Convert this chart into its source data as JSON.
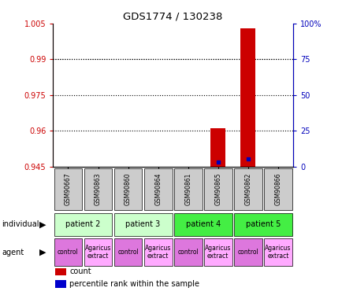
{
  "title": "GDS1774 / 130238",
  "samples": [
    "GSM90667",
    "GSM90863",
    "GSM90860",
    "GSM90864",
    "GSM90861",
    "GSM90865",
    "GSM90862",
    "GSM90866"
  ],
  "ylim_left": [
    0.945,
    1.005
  ],
  "yticks_left": [
    0.945,
    0.96,
    0.975,
    0.99,
    1.005
  ],
  "ytick_labels_left": [
    "0.945",
    "0.96",
    "0.975",
    "0.99",
    "1.005"
  ],
  "ylim_right": [
    0,
    100
  ],
  "yticks_right": [
    0,
    25,
    50,
    75,
    100
  ],
  "ytick_labels_right": [
    "0",
    "25",
    "50",
    "75",
    "100%"
  ],
  "red_bars": {
    "GSM90865": [
      0.945,
      0.961
    ],
    "GSM90862": [
      0.945,
      1.003
    ]
  },
  "blue_dots_pct": {
    "GSM90865": 3.0,
    "GSM90862": 5.5
  },
  "individual_row": [
    {
      "label": "patient 2",
      "start": 0,
      "end": 2,
      "color": "#ccffcc"
    },
    {
      "label": "patient 3",
      "start": 2,
      "end": 4,
      "color": "#ccffcc"
    },
    {
      "label": "patient 4",
      "start": 4,
      "end": 6,
      "color": "#44ee44"
    },
    {
      "label": "patient 5",
      "start": 6,
      "end": 8,
      "color": "#44ee44"
    }
  ],
  "agent_row": [
    {
      "label": "control",
      "start": 0,
      "end": 1,
      "color": "#dd77dd"
    },
    {
      "label": "Agaricus\nextract",
      "start": 1,
      "end": 2,
      "color": "#ffaaff"
    },
    {
      "label": "control",
      "start": 2,
      "end": 3,
      "color": "#dd77dd"
    },
    {
      "label": "Agaricus\nextract",
      "start": 3,
      "end": 4,
      "color": "#ffaaff"
    },
    {
      "label": "control",
      "start": 4,
      "end": 5,
      "color": "#dd77dd"
    },
    {
      "label": "Agaricus\nextract",
      "start": 5,
      "end": 6,
      "color": "#ffaaff"
    },
    {
      "label": "control",
      "start": 6,
      "end": 7,
      "color": "#dd77dd"
    },
    {
      "label": "Agaricus\nextract",
      "start": 7,
      "end": 8,
      "color": "#ffaaff"
    }
  ],
  "legend_items": [
    {
      "label": "count",
      "color": "#cc0000"
    },
    {
      "label": "percentile rank within the sample",
      "color": "#0000cc"
    }
  ],
  "title_color": "#000000",
  "left_axis_color": "#cc0000",
  "right_axis_color": "#0000bb",
  "bar_width": 0.5,
  "sample_row_color": "#cccccc"
}
